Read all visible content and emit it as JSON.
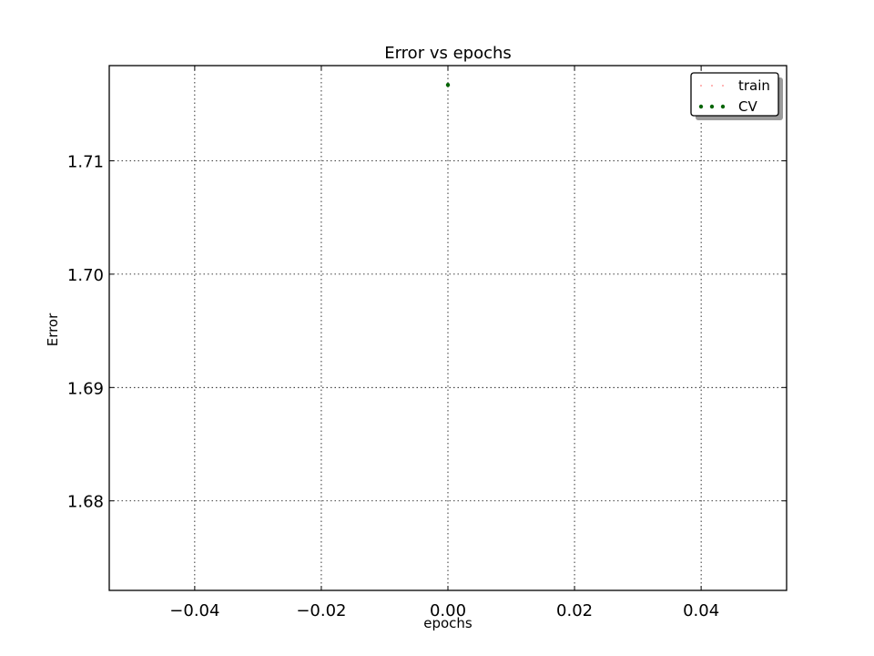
{
  "chart_data": {
    "type": "scatter",
    "title": "Error vs epochs",
    "xlabel": "epochs",
    "ylabel": "Error",
    "xlim": [
      -0.0535,
      0.0535
    ],
    "ylim": [
      1.6721,
      1.7184
    ],
    "xticks": [
      -0.04,
      -0.02,
      0.0,
      0.02,
      0.04
    ],
    "xtick_labels": [
      "−0.04",
      "−0.02",
      "0.00",
      "0.02",
      "0.04"
    ],
    "yticks": [
      1.68,
      1.69,
      1.7,
      1.71
    ],
    "ytick_labels": [
      "1.68",
      "1.69",
      "1.70",
      "1.71"
    ],
    "grid": true,
    "legend_position": "top-right",
    "series": [
      {
        "name": "train",
        "color": "#ff0000",
        "style": "dotted",
        "x": [],
        "y": []
      },
      {
        "name": "CV",
        "color": "#006400",
        "style": "dots",
        "x": [
          0.0
        ],
        "y": [
          1.7167
        ]
      }
    ]
  }
}
